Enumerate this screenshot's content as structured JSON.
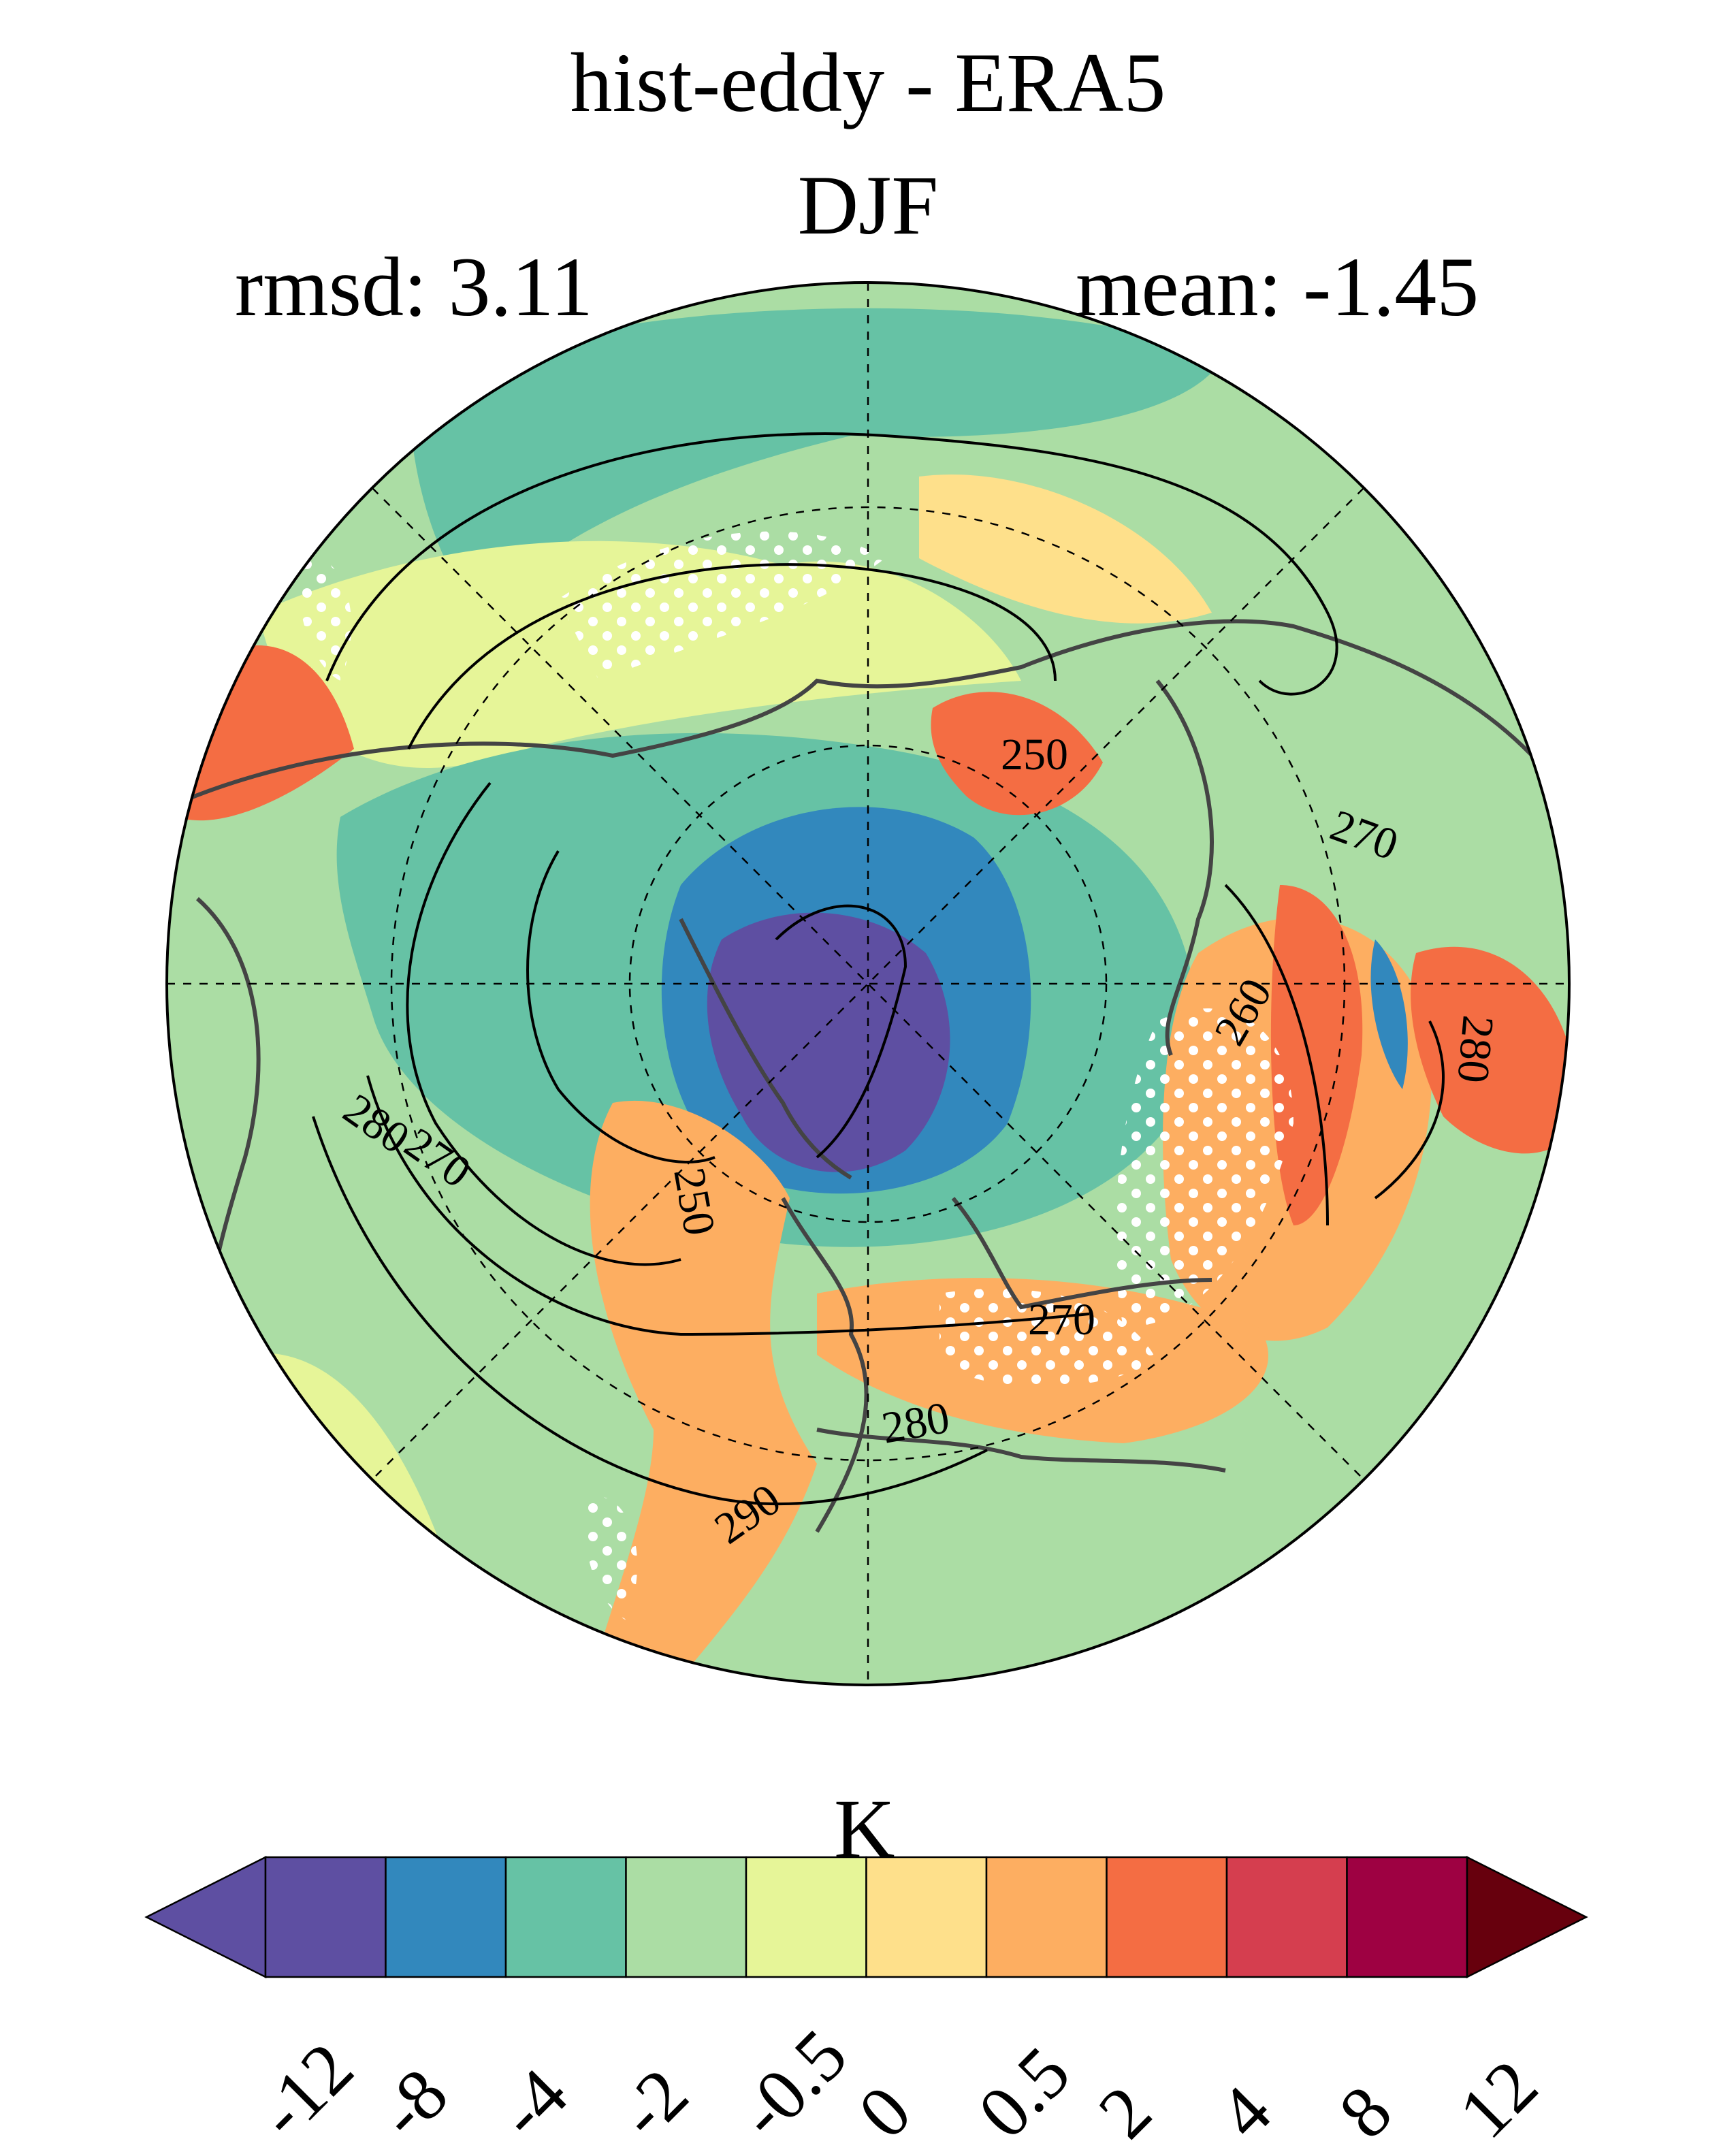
{
  "title": "hist-eddy - ERA5",
  "season": "DJF",
  "stats": {
    "rmsd": "rmsd: 3.11",
    "mean": "mean: -1.45"
  },
  "colorbar": {
    "unit": "K",
    "ticks": [
      "-12",
      "-8",
      "-4",
      "-2",
      "-0.5",
      "0",
      "0.5",
      "2",
      "4",
      "8",
      "12"
    ],
    "colors": [
      "#5e4fa2",
      "#5e4fa2",
      "#3288bd",
      "#66c2a5",
      "#abdda4",
      "#e6f598",
      "#fee08b",
      "#fdae61",
      "#f46d43",
      "#d53e4f",
      "#9e0142",
      "#67000d"
    ]
  },
  "contour_labels": [
    "250",
    "270",
    "260",
    "280",
    "270",
    "250",
    "280",
    "270",
    "280",
    "290"
  ],
  "palette": {
    "neg_large": "#5e4fa2",
    "neg_mid": "#3288bd",
    "neg_small": "#66c2a5",
    "near_zero_neg": "#abdda4",
    "near_zero": "#e6f598",
    "pos_small": "#fee08b",
    "pos_mid": "#fdae61",
    "pos_large": "#f46d43",
    "pos_xl": "#d53e4f"
  }
}
